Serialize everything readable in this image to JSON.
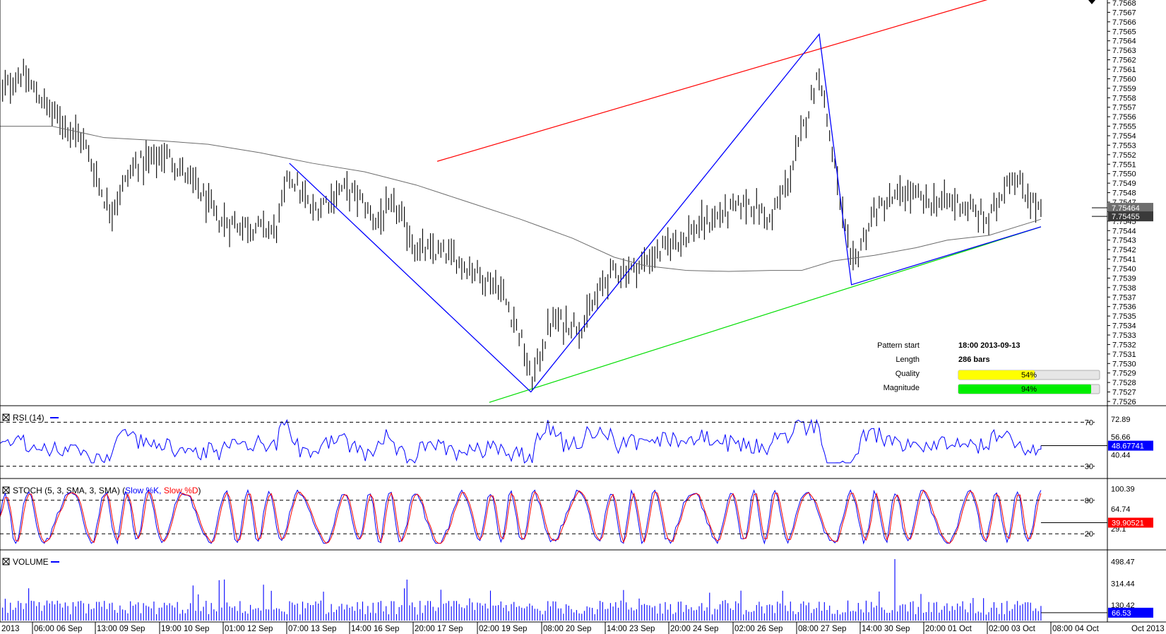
{
  "chart_data": [
    {
      "type": "bar",
      "name_hint": "price",
      "symbol_pane": "main",
      "ylim": [
        7.7526,
        7.7568
      ],
      "y_tick_labels": [
        "7.7568",
        "7.7567",
        "7.7566",
        "7.7565",
        "7.7564",
        "7.7563",
        "7.7562",
        "7.7561",
        "7.7560",
        "7.7559",
        "7.7558",
        "7.7557",
        "7.7556",
        "7.7555",
        "7.7554",
        "7.7553",
        "7.7552",
        "7.7551",
        "7.7550",
        "7.7549",
        "7.7548",
        "7.7547",
        "7.7546",
        "7.7545",
        "7.7544",
        "7.7543",
        "7.7542",
        "7.7541",
        "7.7540",
        "7.7539",
        "7.7538",
        "7.7537",
        "7.7536",
        "7.7535",
        "7.7534",
        "7.7533",
        "7.7532",
        "7.7531",
        "7.7530",
        "7.7529",
        "7.7528",
        "7.7527",
        "7.7526"
      ],
      "price_markers": [
        {
          "label": "7.75464",
          "value": 7.75464,
          "bg": "#6e6e6e"
        },
        {
          "label": "7.75455",
          "value": 7.75455,
          "bg": "#3a3a3a"
        }
      ],
      "x_labels": [
        "2013",
        "06:00 06 Sep",
        "13:00 09 Sep",
        "19:00 10 Sep",
        "01:00 12 Sep",
        "07:00 13 Sep",
        "14:00 16 Sep",
        "20:00 17 Sep",
        "02:00 19 Sep",
        "08:00 20 Sep",
        "14:00 23 Sep",
        "20:00 24 Sep",
        "02:00 26 Sep",
        "08:00 27 Sep",
        "14:00 30 Sep",
        "20:00 01 Oct",
        "02:00 03 Oct",
        "08:00 04 Oct",
        "Oct 2013"
      ],
      "resistance_line": {
        "start": [
          0.42,
          7.75513
        ],
        "end": [
          1.0,
          7.757
        ],
        "color": "#ff0000"
      },
      "support_line": {
        "start": [
          0.47,
          7.75259
        ],
        "end": [
          1.0,
          7.75444
        ],
        "color": "#00dd00"
      },
      "pattern_path": [
        [
          0.278,
          7.75511
        ],
        [
          0.51,
          7.7527
        ],
        [
          0.787,
          7.75647
        ],
        [
          0.818,
          7.75383
        ],
        [
          1.0,
          7.75444
        ]
      ],
      "pattern_color": "#0000ff",
      "moving_average": [
        [
          0.0,
          7.7555
        ],
        [
          0.05,
          7.7555
        ],
        [
          0.1,
          7.75538
        ],
        [
          0.15,
          7.75535
        ],
        [
          0.2,
          7.75531
        ],
        [
          0.25,
          7.75522
        ],
        [
          0.3,
          7.75511
        ],
        [
          0.35,
          7.75502
        ],
        [
          0.4,
          7.75488
        ],
        [
          0.45,
          7.7547
        ],
        [
          0.5,
          7.75452
        ],
        [
          0.55,
          7.75432
        ],
        [
          0.59,
          7.75412
        ],
        [
          0.62,
          7.75403
        ],
        [
          0.66,
          7.75398
        ],
        [
          0.7,
          7.75397
        ],
        [
          0.74,
          7.75398
        ],
        [
          0.77,
          7.75398
        ],
        [
          0.8,
          7.75408
        ],
        [
          0.84,
          7.75414
        ],
        [
          0.88,
          7.75422
        ],
        [
          0.91,
          7.7543
        ],
        [
          0.95,
          7.75435
        ],
        [
          1.0,
          7.75452
        ]
      ],
      "info_panel": {
        "pattern_start_label": "Pattern start",
        "pattern_start_value": "18:00 2013-09-13",
        "length_label": "Length",
        "length_value": "286 bars",
        "quality_label": "Quality",
        "quality_value": "54%",
        "quality_fraction": 0.54,
        "quality_color": "#ffff00",
        "magnitude_label": "Magnitude",
        "magnitude_value": "94%",
        "magnitude_fraction": 0.94,
        "magnitude_color": "#00ee00"
      }
    },
    {
      "type": "line",
      "pane": "rsi",
      "title": "RSI (14)",
      "ylim": [
        22,
        78
      ],
      "levels": [
        70,
        30
      ],
      "y_tick_labels": [
        "72.89",
        "56.66",
        "40.44"
      ],
      "value_label": "48.67741",
      "value_bg": "#0000ff",
      "series_color": "#0000ff"
    },
    {
      "type": "line",
      "pane": "stoch",
      "title": "STOCH (5, 3, SMA, 3, SMA)",
      "legend_k": "Slow %K,",
      "legend_d": "Slow %D",
      "legend_k_color": "#0000ff",
      "legend_d_color": "#ff0000",
      "ylim": [
        -5,
        105
      ],
      "levels": [
        80,
        20
      ],
      "y_tick_labels": [
        "100.39",
        "64.74",
        "29.1"
      ],
      "value_label": "39.90521",
      "value_bg": "#ff0000"
    },
    {
      "type": "bar",
      "pane": "volume",
      "title": "VOLUME",
      "ylim": [
        0,
        550
      ],
      "y_tick_labels": [
        "498.47",
        "314.44",
        "130.42"
      ],
      "value_label": "66.53",
      "value_bg": "#0000ff",
      "series_color": "#0000ff"
    }
  ]
}
